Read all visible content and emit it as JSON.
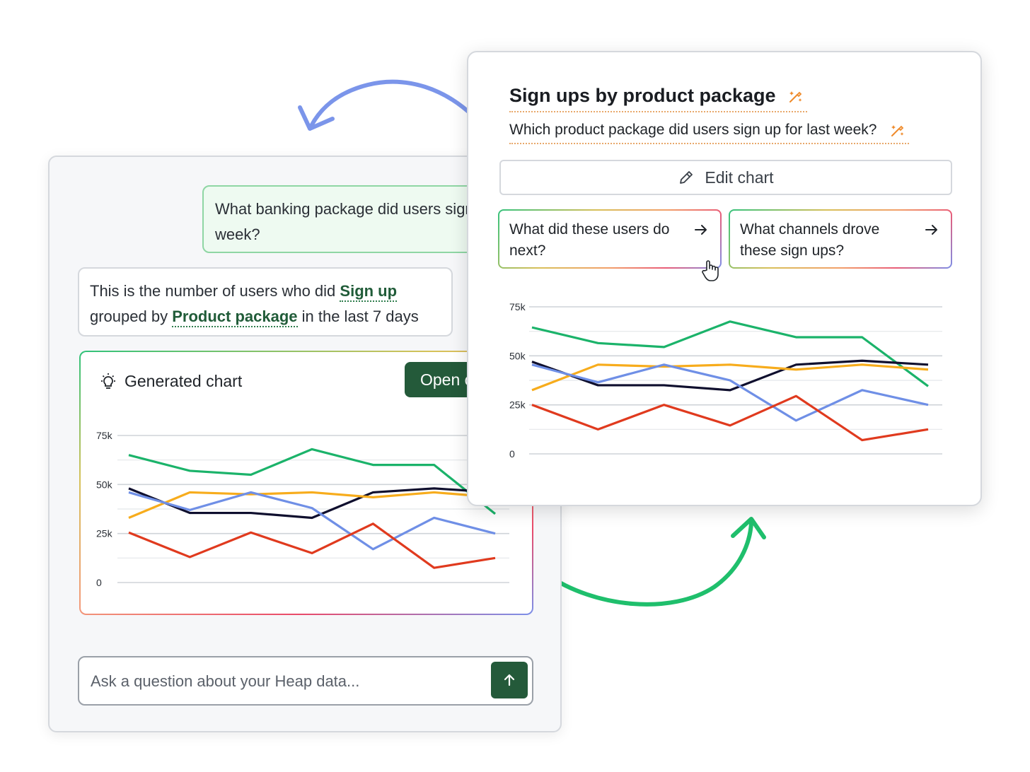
{
  "chat": {
    "user_question": "What banking package did users sign up for last week?",
    "answer_prefix": "This is the number of users who did",
    "answer_event": "Sign up",
    "answer_mid": "grouped by",
    "answer_property": "Product package",
    "answer_suffix": "in the last 7 days",
    "generated_chart_label": "Generated chart",
    "open_button_label": "Open chart",
    "ask_placeholder": "Ask a question about your Heap data..."
  },
  "panel": {
    "title": "Sign ups by product package",
    "subtitle": "Which product package did users sign up for last week?",
    "edit_label": "Edit chart",
    "suggestions": [
      {
        "label": "What did these users do next?"
      },
      {
        "label": "What channels drove these sign ups?"
      }
    ]
  },
  "icons": {
    "sparkle": "sparkle-icon",
    "pencil": "pencil-icon",
    "arrow": "arrow-right-icon",
    "cursor": "hand-pointer-icon",
    "bulb": "lightbulb-icon",
    "send": "arrow-up-icon"
  },
  "colors": {
    "brand_green": "#245a3a",
    "series_green": "#1bb36a",
    "series_navy": "#0f0f2e",
    "series_orange": "#f7ac1c",
    "series_blue": "#6f8fe6",
    "series_red": "#e03a1e",
    "curve_blue": "#7b95ea",
    "curve_green": "#1fbf6c"
  },
  "chart_data": [
    {
      "type": "line",
      "title": "",
      "y_ticks": [
        "0",
        "25k",
        "50k",
        "75k"
      ],
      "ylim": [
        0,
        75000
      ],
      "x": [
        1,
        2,
        3,
        4,
        5,
        6,
        7
      ],
      "grid": true,
      "series": [
        {
          "color": "#1bb36a",
          "values": [
            65000,
            57000,
            55000,
            68000,
            60000,
            60000,
            35000
          ]
        },
        {
          "color": "#0f0f2e",
          "values": [
            48000,
            35500,
            35500,
            33000,
            46000,
            48000,
            46000
          ]
        },
        {
          "color": "#f7ac1c",
          "values": [
            33000,
            46000,
            45000,
            46000,
            43500,
            46000,
            43500
          ]
        },
        {
          "color": "#6f8fe6",
          "values": [
            46000,
            37000,
            46000,
            38000,
            17000,
            33000,
            25000
          ]
        },
        {
          "color": "#e03a1e",
          "values": [
            25500,
            13000,
            25500,
            15000,
            30000,
            7500,
            12500
          ]
        }
      ]
    },
    {
      "type": "line",
      "title": "",
      "y_ticks": [
        "0",
        "25k",
        "50k",
        "75k"
      ],
      "ylim": [
        0,
        75000
      ],
      "x": [
        1,
        2,
        3,
        4,
        5,
        6,
        7
      ],
      "grid": true,
      "series": [
        {
          "color": "#1bb36a",
          "values": [
            64500,
            56500,
            54500,
            67500,
            59500,
            59500,
            34500
          ]
        },
        {
          "color": "#0f0f2e",
          "values": [
            47000,
            35000,
            35000,
            32500,
            45500,
            47500,
            45500
          ]
        },
        {
          "color": "#f7ac1c",
          "values": [
            32500,
            45500,
            44500,
            45500,
            43000,
            45500,
            43000
          ]
        },
        {
          "color": "#6f8fe6",
          "values": [
            45500,
            36500,
            45500,
            37500,
            17000,
            32500,
            25000
          ]
        },
        {
          "color": "#e03a1e",
          "values": [
            25000,
            12500,
            25000,
            14500,
            29500,
            7000,
            12500
          ]
        }
      ]
    }
  ]
}
